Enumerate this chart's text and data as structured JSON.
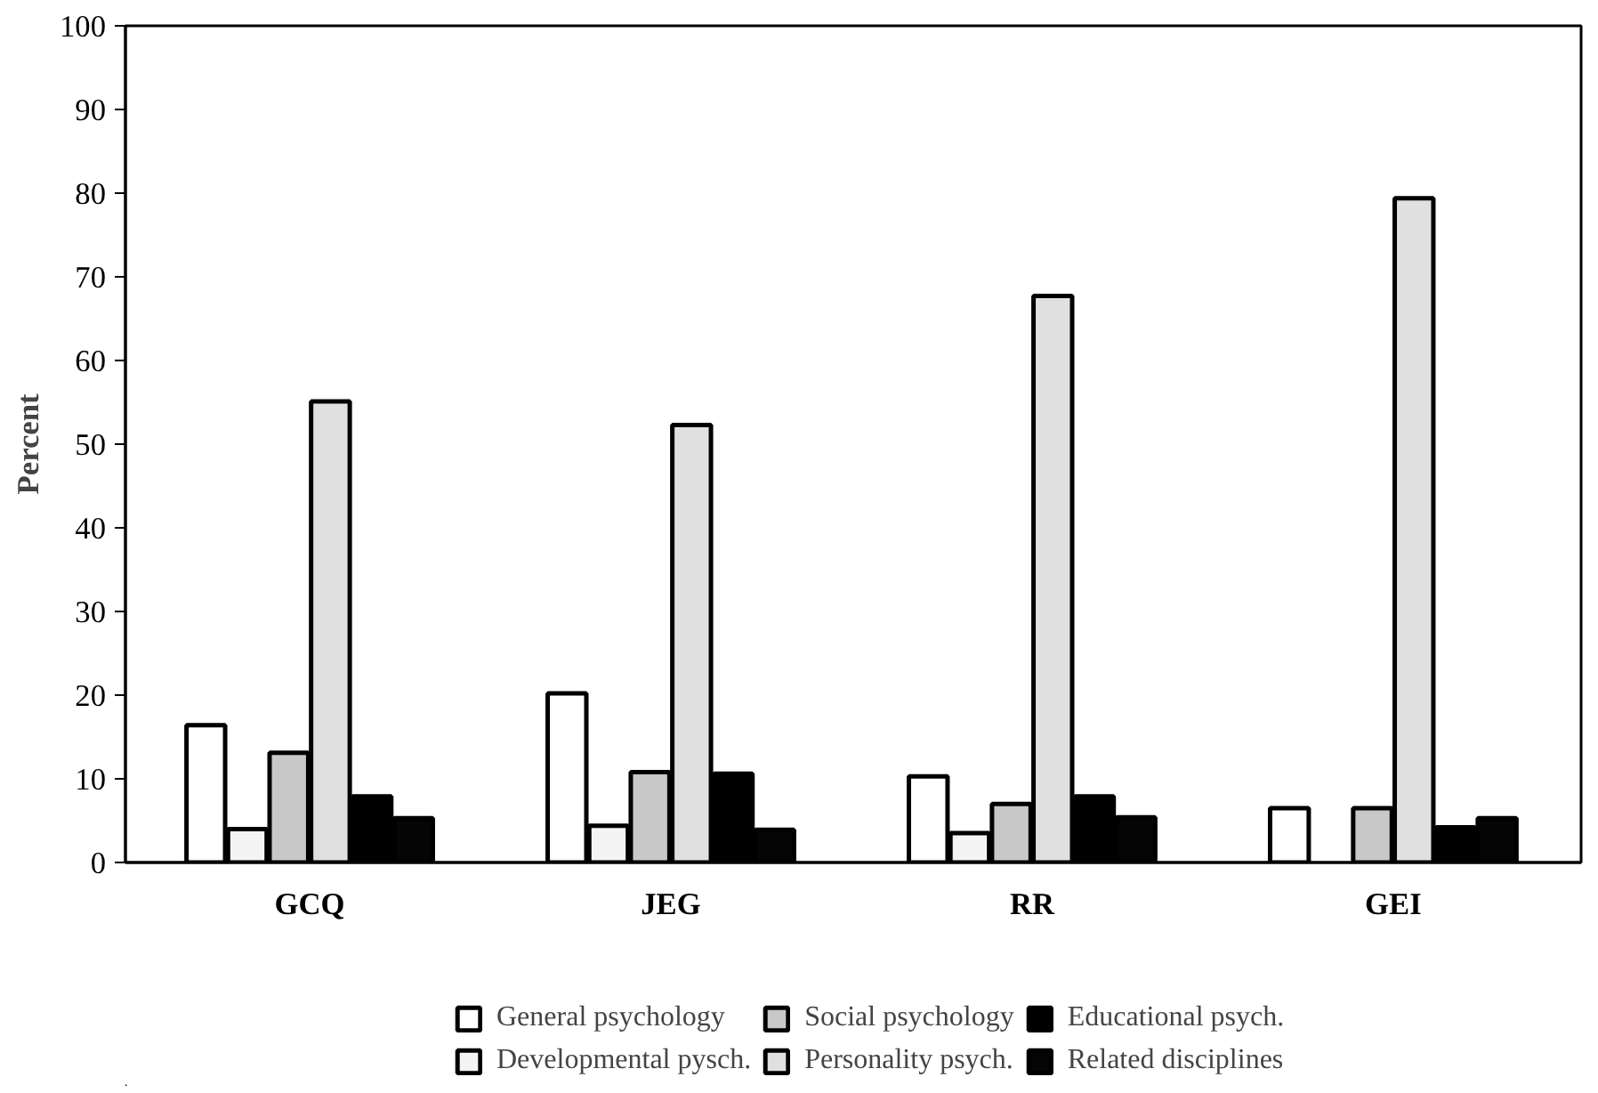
{
  "chart_data": {
    "type": "bar",
    "ylabel": "Percent",
    "categories": [
      "GCQ",
      "JEG",
      "RR",
      "GEI"
    ],
    "series": [
      {
        "name": "General psychology",
        "color": "#ffffff",
        "values": [
          16.4,
          20.2,
          10.3,
          6.5
        ]
      },
      {
        "name": "Developmental pysch.",
        "color": "#f4f4f4",
        "values": [
          4.0,
          4.4,
          3.5,
          0
        ]
      },
      {
        "name": "Social psychology",
        "color": "#c8c8c8",
        "values": [
          13.1,
          10.8,
          7.0,
          6.5
        ]
      },
      {
        "name": "Personality psych.",
        "color": "#e0e0e0",
        "values": [
          55.1,
          52.3,
          67.7,
          79.4
        ]
      },
      {
        "name": "Educational psych.",
        "color": "#000000",
        "values": [
          7.9,
          10.6,
          7.9,
          4.2
        ]
      },
      {
        "name": "Related disciplines",
        "color": "#050505",
        "values": [
          5.3,
          3.9,
          5.4,
          5.3
        ]
      }
    ],
    "ylim": [
      0,
      100
    ],
    "yticks": [
      0,
      10,
      20,
      30,
      40,
      50,
      60,
      70,
      80,
      90,
      100
    ],
    "grid": false,
    "legend": "bottom"
  }
}
